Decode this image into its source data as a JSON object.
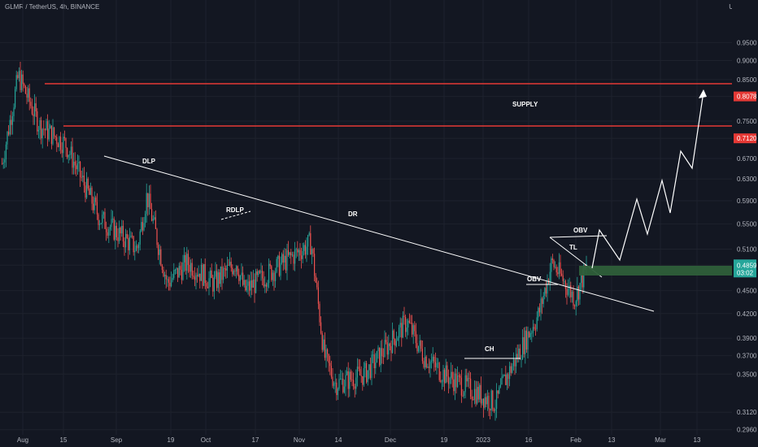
{
  "header": {
    "symbol": "GLMR / TetherUS, 4h, BINANCE",
    "unit": "USDT"
  },
  "chart_data": {
    "type": "candlestick",
    "y_scale": "log",
    "ylim": [
      0.2915,
      1.08
    ],
    "y_ticks": [
      "0.9500",
      "0.9000",
      "0.8500",
      "0.8078",
      "0.7500",
      "0.7120",
      "0.6700",
      "0.6300",
      "0.5900",
      "0.5500",
      "0.5100",
      "0.4859",
      "0.4500",
      "0.4200",
      "0.3900",
      "0.3700",
      "0.3500",
      "0.3120",
      "0.2960"
    ],
    "x_ticks": [
      "Aug",
      "15",
      "Sep",
      "19",
      "Oct",
      "17",
      "Nov",
      "14",
      "Dec",
      "19",
      "2023",
      "16",
      "Feb",
      "13",
      "Mar",
      "13"
    ],
    "price_path": [
      [
        "Aug",
        0.66
      ],
      [
        "Aug",
        0.86
      ],
      [
        "15",
        0.74
      ],
      [
        "15",
        0.7
      ],
      [
        "Sep",
        0.56
      ],
      [
        "Sep",
        0.51
      ],
      [
        "19",
        0.6
      ],
      [
        "19",
        0.46
      ],
      [
        "Oct",
        0.49
      ],
      [
        "Oct",
        0.46
      ],
      [
        "17",
        0.49
      ],
      [
        "17",
        0.45
      ],
      [
        "Nov",
        0.52
      ],
      [
        "Nov",
        0.37
      ],
      [
        "14",
        0.34
      ],
      [
        "14",
        0.35
      ],
      [
        "Dec",
        0.41
      ],
      [
        "Dec",
        0.37
      ],
      [
        "19",
        0.35
      ],
      [
        "19",
        0.34
      ],
      [
        "2023",
        0.32
      ],
      [
        "2023",
        0.34
      ],
      [
        "16",
        0.42
      ],
      [
        "16",
        0.49
      ],
      [
        "Feb",
        0.44
      ],
      [
        "Feb",
        0.4859
      ]
    ],
    "price_levels": [
      {
        "name": "supply-top",
        "value": 0.8078,
        "label": "0.8078",
        "color": "#e53935"
      },
      {
        "name": "supply-bottom",
        "value": 0.712,
        "label": "0.7120",
        "color": "#e53935"
      }
    ],
    "current_price": {
      "value": 0.4859,
      "label": "0.4859",
      "countdown": "03:02",
      "color": "#26a69a"
    },
    "annotations": [
      "DLP",
      "RDLP",
      "DR",
      "SUPPLY",
      "OBV",
      "CH",
      "TL",
      "OBV"
    ],
    "colors": {
      "up": "#26a69a",
      "down": "#ef5350",
      "line": "#ffffff",
      "demand_zone": "#2e5f3a"
    }
  }
}
